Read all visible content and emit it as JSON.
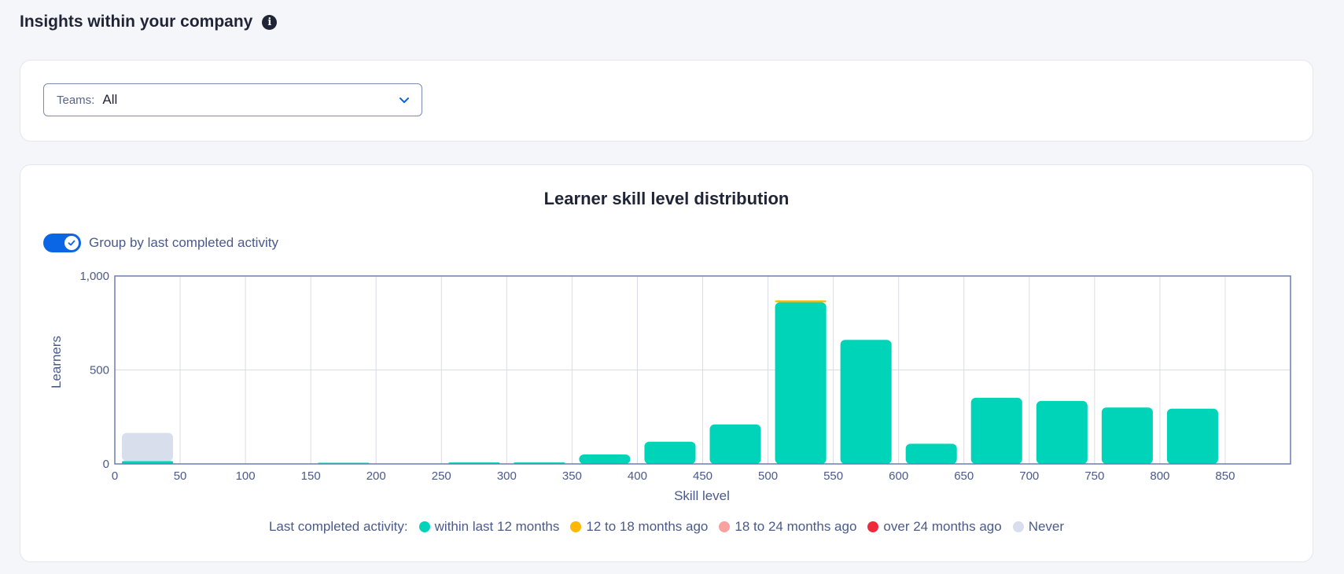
{
  "page": {
    "title": "Insights within your company"
  },
  "filter": {
    "label": "Teams:",
    "value": "All"
  },
  "chart": {
    "title": "Learner skill level distribution",
    "toggle_label": "Group by last completed activity",
    "toggle_on": true,
    "legend_title": "Last completed activity:",
    "legend": [
      {
        "label": "within last 12 months",
        "color": "#00d4b8"
      },
      {
        "label": "12 to 18 months ago",
        "color": "#ffb800"
      },
      {
        "label": "18 to 24 months ago",
        "color": "#f9a0a0"
      },
      {
        "label": "over 24 months ago",
        "color": "#ee2b3b"
      },
      {
        "label": "Never",
        "color": "#d8deec"
      }
    ]
  },
  "chart_data": {
    "type": "bar",
    "stacked": true,
    "xlabel": "Skill level",
    "ylabel": "Learners",
    "xlim": [
      0,
      900
    ],
    "ylim": [
      0,
      1000
    ],
    "x_ticks": [
      0,
      50,
      100,
      150,
      200,
      250,
      300,
      350,
      400,
      450,
      500,
      550,
      600,
      650,
      700,
      750,
      800,
      850
    ],
    "x_tick_labels": [
      "0",
      "50",
      "100",
      "150",
      "200",
      "250",
      "300",
      "350",
      "400",
      "450",
      "500",
      "550",
      "600",
      "650",
      "700",
      "750",
      "800",
      "850"
    ],
    "y_ticks": [
      0,
      500,
      1000
    ],
    "y_tick_labels": [
      "0",
      "500",
      "1,000"
    ],
    "bins": [
      {
        "from": 0,
        "to": 50,
        "series": {
          "within last 12 months": 15,
          "12 to 18 months ago": 0,
          "Never": 150
        }
      },
      {
        "from": 150,
        "to": 200,
        "series": {
          "within last 12 months": 3,
          "12 to 18 months ago": 0,
          "Never": 0
        }
      },
      {
        "from": 250,
        "to": 300,
        "series": {
          "within last 12 months": 8,
          "12 to 18 months ago": 0,
          "Never": 0
        }
      },
      {
        "from": 300,
        "to": 350,
        "series": {
          "within last 12 months": 8,
          "12 to 18 months ago": 0,
          "Never": 0
        }
      },
      {
        "from": 350,
        "to": 400,
        "series": {
          "within last 12 months": 50,
          "12 to 18 months ago": 0,
          "Never": 0
        }
      },
      {
        "from": 400,
        "to": 450,
        "series": {
          "within last 12 months": 118,
          "12 to 18 months ago": 0,
          "Never": 0
        }
      },
      {
        "from": 450,
        "to": 500,
        "series": {
          "within last 12 months": 210,
          "12 to 18 months ago": 0,
          "Never": 0
        }
      },
      {
        "from": 500,
        "to": 550,
        "series": {
          "within last 12 months": 860,
          "12 to 18 months ago": 10,
          "Never": 0
        }
      },
      {
        "from": 550,
        "to": 600,
        "series": {
          "within last 12 months": 660,
          "12 to 18 months ago": 0,
          "Never": 0
        }
      },
      {
        "from": 600,
        "to": 650,
        "series": {
          "within last 12 months": 107,
          "12 to 18 months ago": 0,
          "Never": 0
        }
      },
      {
        "from": 650,
        "to": 700,
        "series": {
          "within last 12 months": 352,
          "12 to 18 months ago": 0,
          "Never": 0
        }
      },
      {
        "from": 700,
        "to": 750,
        "series": {
          "within last 12 months": 335,
          "12 to 18 months ago": 0,
          "Never": 0
        }
      },
      {
        "from": 750,
        "to": 800,
        "series": {
          "within last 12 months": 300,
          "12 to 18 months ago": 0,
          "Never": 0
        }
      },
      {
        "from": 800,
        "to": 850,
        "series": {
          "within last 12 months": 294,
          "12 to 18 months ago": 0,
          "Never": 0
        }
      }
    ]
  }
}
